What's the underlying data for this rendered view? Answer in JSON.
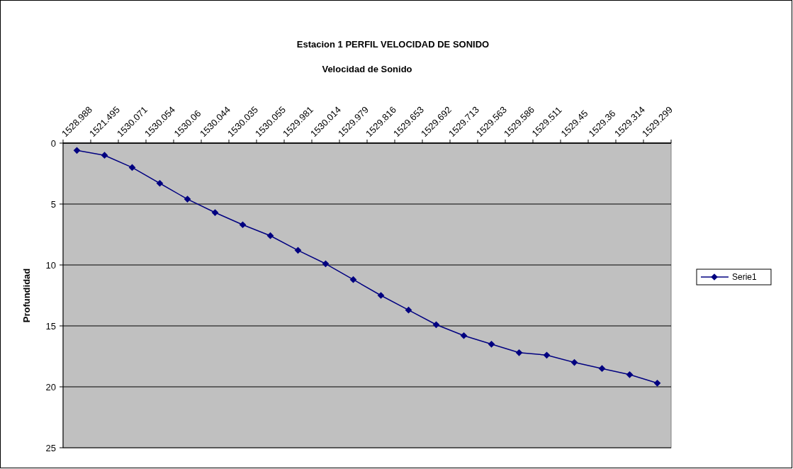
{
  "chart_data": {
    "type": "line",
    "title": "Estacion 1  PERFIL VELOCIDAD DE SONIDO",
    "xlabel": "Velocidad de Sonido",
    "ylabel": "Profundidad",
    "categories": [
      "1528.988",
      "1521.495",
      "1530.071",
      "1530.054",
      "1530.06",
      "1530.044",
      "1530.035",
      "1530.055",
      "1529.981",
      "1530.014",
      "1529.979",
      "1529.816",
      "1529.653",
      "1529.692",
      "1529.713",
      "1529.563",
      "1529.586",
      "1529.511",
      "1529.45",
      "1529.36",
      "1529.314",
      "1529.299"
    ],
    "series": [
      {
        "name": "Serie1",
        "color": "#000080",
        "values": [
          0.6,
          1.0,
          2.0,
          3.3,
          4.6,
          5.7,
          6.7,
          7.6,
          8.8,
          9.9,
          11.2,
          12.5,
          13.7,
          14.9,
          15.8,
          16.5,
          17.2,
          17.4,
          18.0,
          18.5,
          19.0,
          19.7
        ]
      }
    ],
    "ylim": [
      25,
      0
    ],
    "yticks": [
      0,
      5,
      10,
      15,
      20,
      25
    ],
    "grid": "y",
    "legend": "right",
    "marker": "diamond",
    "line_style": "solid"
  }
}
